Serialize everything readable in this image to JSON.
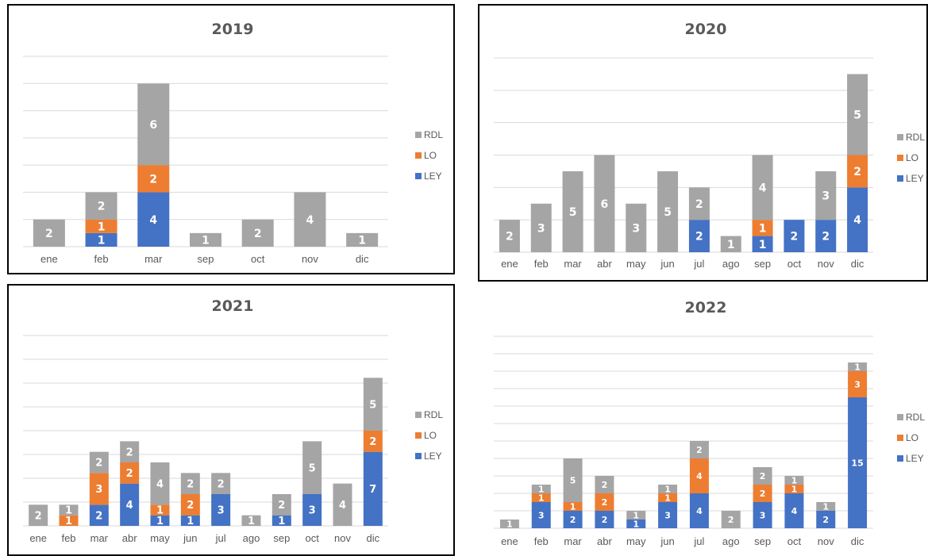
{
  "colors": {
    "LEY": "#4472c4",
    "LO": "#ed7d31",
    "RDL": "#a5a5a5"
  },
  "chart_data": [
    {
      "type": "bar",
      "stacked": true,
      "title": "2019",
      "categories": [
        "ene",
        "feb",
        "mar",
        "sep",
        "oct",
        "nov",
        "dic"
      ],
      "series": [
        {
          "name": "LEY",
          "values": [
            0,
            1,
            4,
            0,
            0,
            0,
            0
          ]
        },
        {
          "name": "LO",
          "values": [
            0,
            1,
            2,
            0,
            0,
            0,
            0
          ]
        },
        {
          "name": "RDL",
          "values": [
            2,
            2,
            6,
            1,
            2,
            4,
            1
          ]
        }
      ],
      "ylim": [
        0,
        14
      ],
      "grid": true,
      "legend": "right"
    },
    {
      "type": "bar",
      "stacked": true,
      "title": "2020",
      "categories": [
        "ene",
        "feb",
        "mar",
        "abr",
        "may",
        "jun",
        "jul",
        "ago",
        "sep",
        "oct",
        "nov",
        "dic"
      ],
      "series": [
        {
          "name": "LEY",
          "values": [
            0,
            0,
            0,
            0,
            0,
            0,
            2,
            0,
            1,
            2,
            2,
            4
          ]
        },
        {
          "name": "LO",
          "values": [
            0,
            0,
            0,
            0,
            0,
            0,
            0,
            0,
            1,
            0,
            0,
            2
          ]
        },
        {
          "name": "RDL",
          "values": [
            2,
            3,
            5,
            6,
            3,
            5,
            2,
            1,
            4,
            0,
            3,
            5
          ]
        }
      ],
      "ylim": [
        0,
        12
      ],
      "grid": true,
      "legend": "right"
    },
    {
      "type": "bar",
      "stacked": true,
      "title": "2021",
      "categories": [
        "ene",
        "feb",
        "mar",
        "abr",
        "may",
        "jun",
        "jul",
        "ago",
        "sep",
        "oct",
        "nov",
        "dic"
      ],
      "series": [
        {
          "name": "LEY",
          "values": [
            0,
            0,
            2,
            4,
            1,
            1,
            3,
            0,
            1,
            3,
            0,
            7
          ]
        },
        {
          "name": "LO",
          "values": [
            0,
            1,
            3,
            2,
            1,
            2,
            0,
            0,
            0,
            0,
            0,
            2
          ]
        },
        {
          "name": "RDL",
          "values": [
            2,
            1,
            2,
            2,
            4,
            2,
            2,
            1,
            2,
            5,
            4,
            5
          ]
        }
      ],
      "ylim": [
        0,
        18
      ],
      "grid": true,
      "legend": "right"
    },
    {
      "type": "bar",
      "stacked": true,
      "title": "2022",
      "categories": [
        "ene",
        "feb",
        "mar",
        "abr",
        "may",
        "jun",
        "jul",
        "ago",
        "sep",
        "oct",
        "nov",
        "dic"
      ],
      "series": [
        {
          "name": "LEY",
          "values": [
            0,
            3,
            2,
            2,
            1,
            3,
            4,
            0,
            3,
            4,
            2,
            15
          ]
        },
        {
          "name": "LO",
          "values": [
            0,
            1,
            1,
            2,
            0,
            1,
            4,
            0,
            2,
            1,
            0,
            3
          ]
        },
        {
          "name": "RDL",
          "values": [
            1,
            1,
            5,
            2,
            1,
            1,
            2,
            2,
            2,
            1,
            1,
            1
          ]
        }
      ],
      "ylim": [
        0,
        22
      ],
      "grid": true,
      "legend": "right"
    }
  ]
}
